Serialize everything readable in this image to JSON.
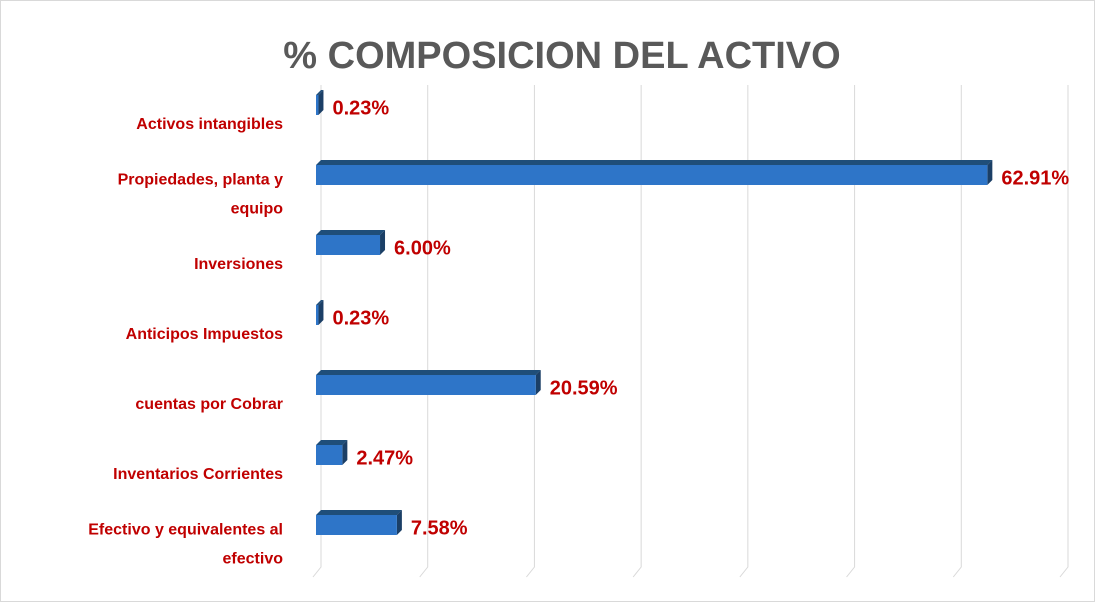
{
  "chart_data": {
    "type": "bar",
    "orientation": "horizontal",
    "title": "% COMPOSICION DEL ACTIVO",
    "categories": [
      "Activos intangibles",
      "Propiedades, planta y equipo",
      "Inversiones",
      "Anticipos Impuestos",
      "cuentas por Cobrar",
      "Inventarios Corrientes",
      "Efectivo y equivalentes al efectivo"
    ],
    "values": [
      0.23,
      62.91,
      6.0,
      0.23,
      20.59,
      2.47,
      7.58
    ],
    "value_labels": [
      "0.23%",
      "62.91%",
      "6.00%",
      "0.23%",
      "20.59%",
      "2.47%",
      "7.58%"
    ],
    "color": "#2e75c8",
    "xlim": [
      0,
      70
    ],
    "xticks": [
      0,
      10,
      20,
      30,
      40,
      50,
      60,
      70
    ],
    "grid": true
  }
}
